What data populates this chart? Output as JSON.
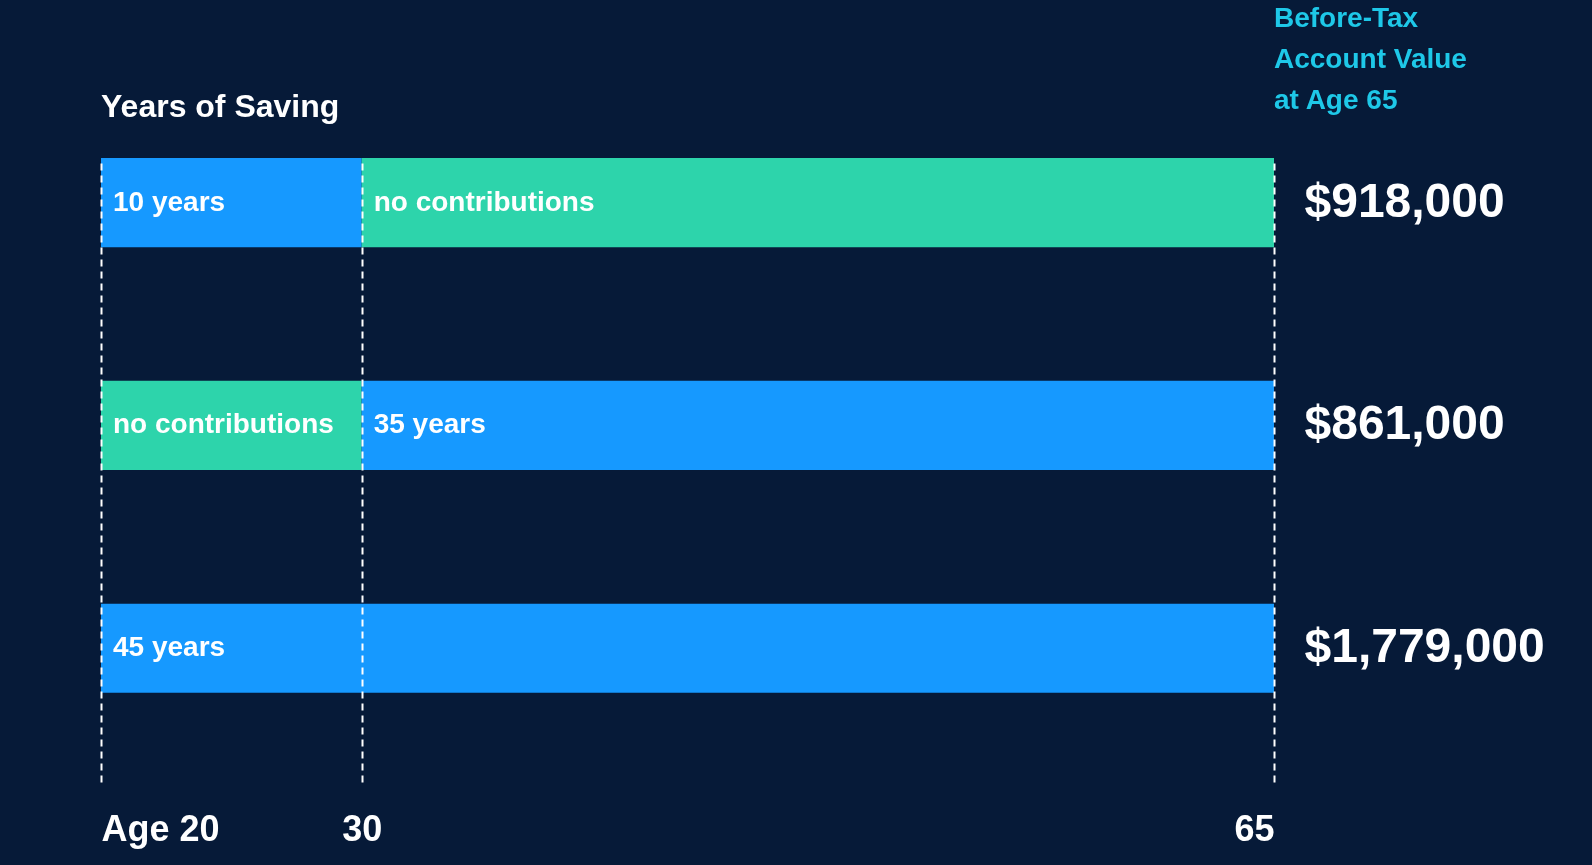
{
  "chart_data": {
    "type": "bar",
    "orientation": "horizontal",
    "title": "Years of Saving",
    "ylabel": "Before-Tax Account Value at Age 65",
    "categories": [
      "$918,000",
      "$861,000",
      "$1,779,000"
    ],
    "series": [
      {
        "colors": [
          "#1699ff",
          "#2dd4ab",
          "#1699ff"
        ],
        "base": [
          20,
          20,
          20
        ],
        "values": [
          10,
          10,
          45
        ],
        "value_labels": [
          "10 years",
          "no contributions",
          "45 years"
        ]
      },
      {
        "colors": [
          "#2dd4ab",
          "#1699ff",
          null
        ],
        "base": [
          30,
          30,
          null
        ],
        "values": [
          35,
          35,
          null
        ],
        "value_labels": [
          "no contributions",
          "35 years",
          null
        ]
      }
    ],
    "xlim": [
      20,
      65
    ],
    "xticks": [
      {
        "value": 20,
        "label": "Age 20"
      },
      30,
      65
    ],
    "grid": "x"
  }
}
